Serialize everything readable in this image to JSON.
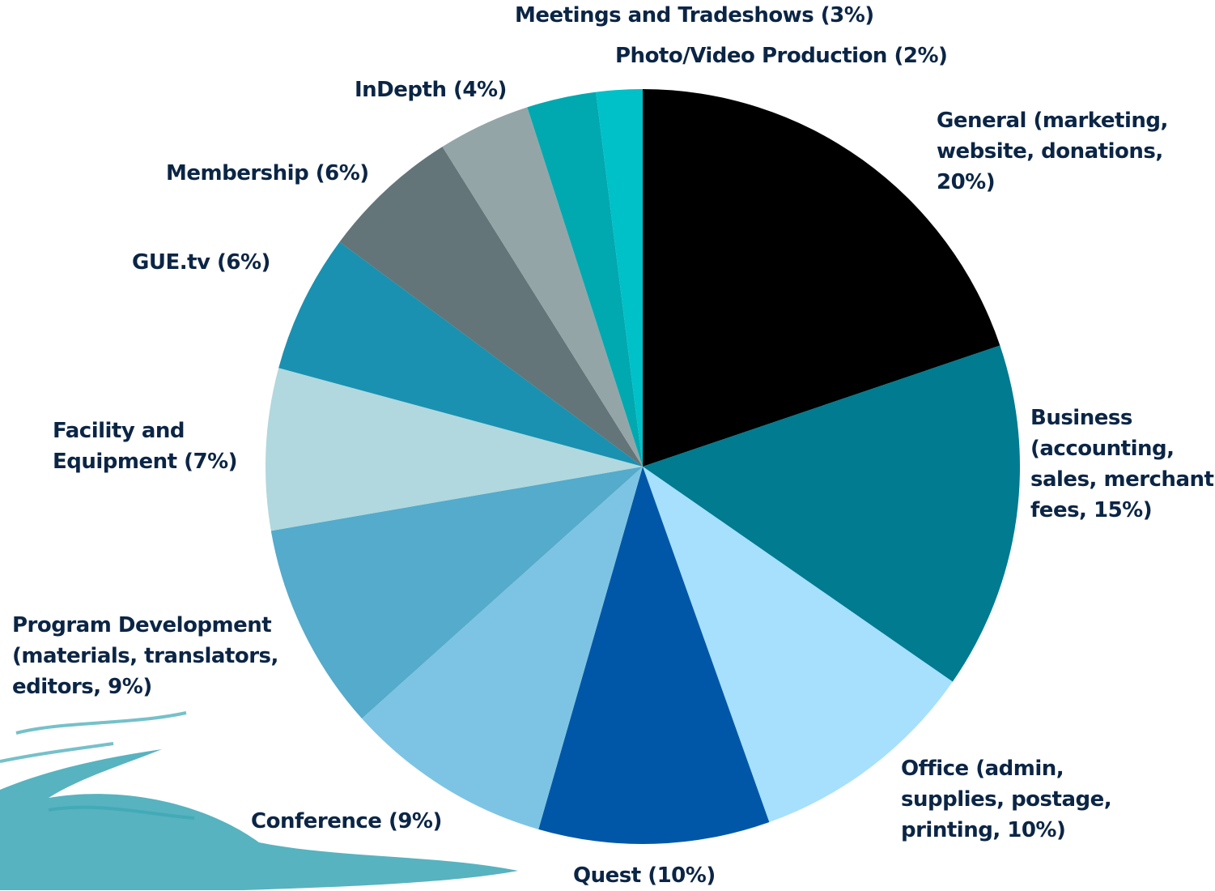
{
  "chart_data": {
    "type": "pie",
    "categories": [
      "General (marketing, website, donations, 20%)",
      "Business (accounting, sales, merchant fees, 15%)",
      "Office (admin, supplies, postage, printing, 10%)",
      "Quest (10%)",
      "Conference (9%)",
      "Program Development (materials, translators, editors, 9%)",
      "Facility and Equipment (7%)",
      "GUE.tv (6%)",
      "Membership (6%)",
      "InDepth (4%)",
      "Meetings and Tradeshows (3%)",
      "Photo/Video Production (2%)"
    ],
    "values": [
      20,
      15,
      10,
      10,
      9,
      9,
      7,
      6,
      6,
      4,
      3,
      2
    ],
    "colors": [
      "#000000",
      "#007b8f",
      "#a6e0fd",
      "#0057a8",
      "#7dc4e4",
      "#54abcb",
      "#b0d8de",
      "#1a91b0",
      "#637578",
      "#94a5a8",
      "#00a8b0",
      "#00c0c8"
    ]
  }
}
